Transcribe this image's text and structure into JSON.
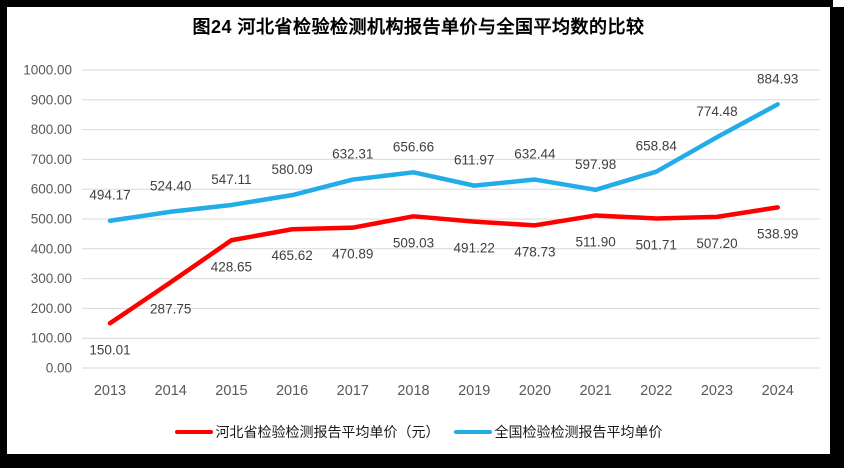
{
  "chart_data": {
    "type": "line",
    "title": "图24 河北省检验检测机构报告单价与全国平均数的比较",
    "categories": [
      "2013",
      "2014",
      "2015",
      "2016",
      "2017",
      "2018",
      "2019",
      "2020",
      "2021",
      "2022",
      "2023",
      "2024"
    ],
    "series": [
      {
        "name": "河北省检验检测报告平均单价（元）",
        "color": "#FF0000",
        "label_position": "below",
        "values": [
          150.01,
          287.75,
          428.65,
          465.62,
          470.89,
          509.03,
          491.22,
          478.73,
          511.9,
          501.71,
          507.2,
          538.99
        ]
      },
      {
        "name": "全国检验检测报告平均单价",
        "color": "#22ACE8",
        "label_position": "above",
        "values": [
          494.17,
          524.4,
          547.11,
          580.09,
          632.31,
          656.66,
          611.97,
          632.44,
          597.98,
          658.84,
          774.48,
          884.93
        ]
      }
    ],
    "ylim": [
      0,
      1000
    ],
    "y_tick_step": 100,
    "y_ticks": [
      "0.00",
      "100.00",
      "200.00",
      "300.00",
      "400.00",
      "500.00",
      "600.00",
      "700.00",
      "800.00",
      "900.00",
      "1000.00"
    ],
    "grid": true,
    "legend_position": "bottom",
    "colors": {
      "grid": "#D9D9D9",
      "axis_text": "#595959",
      "data_label_text": "#404040",
      "background": "#FFFFFF",
      "frame": "#000000"
    }
  }
}
